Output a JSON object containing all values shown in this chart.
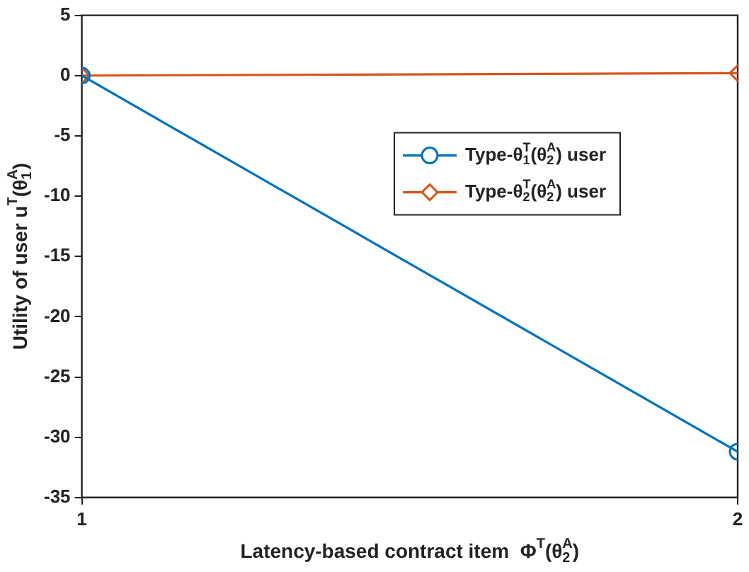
{
  "chart_data": {
    "type": "line",
    "xlabel": "Latency-based contract item  Φ$^{T}$(θ$^{A}$$_{2}$)",
    "ylabel": "Utility of user u$^{T}$(θ$^{A}$$_{1}$)",
    "x": [
      1,
      2
    ],
    "xlim": [
      1,
      2
    ],
    "xticks": [
      1,
      2
    ],
    "ylim": [
      -35,
      5
    ],
    "yticks": [
      -35,
      -30,
      -25,
      -20,
      -15,
      -10,
      -5,
      0,
      5
    ],
    "grid": false,
    "legend": "right",
    "line_style": "solid",
    "series": [
      {
        "name": "Type-θ$^{T}$$_{1}$(θ$^{A}$$_{2}$) user",
        "color": "#0072bd",
        "marker": "circle",
        "values": [
          0,
          -31.2
        ]
      },
      {
        "name": "Type-θ$^{T}$$_{2}$(θ$^{A}$$_{2}$) user",
        "color": "#d95319",
        "marker": "diamond",
        "values": [
          0,
          0.2
        ]
      }
    ]
  }
}
